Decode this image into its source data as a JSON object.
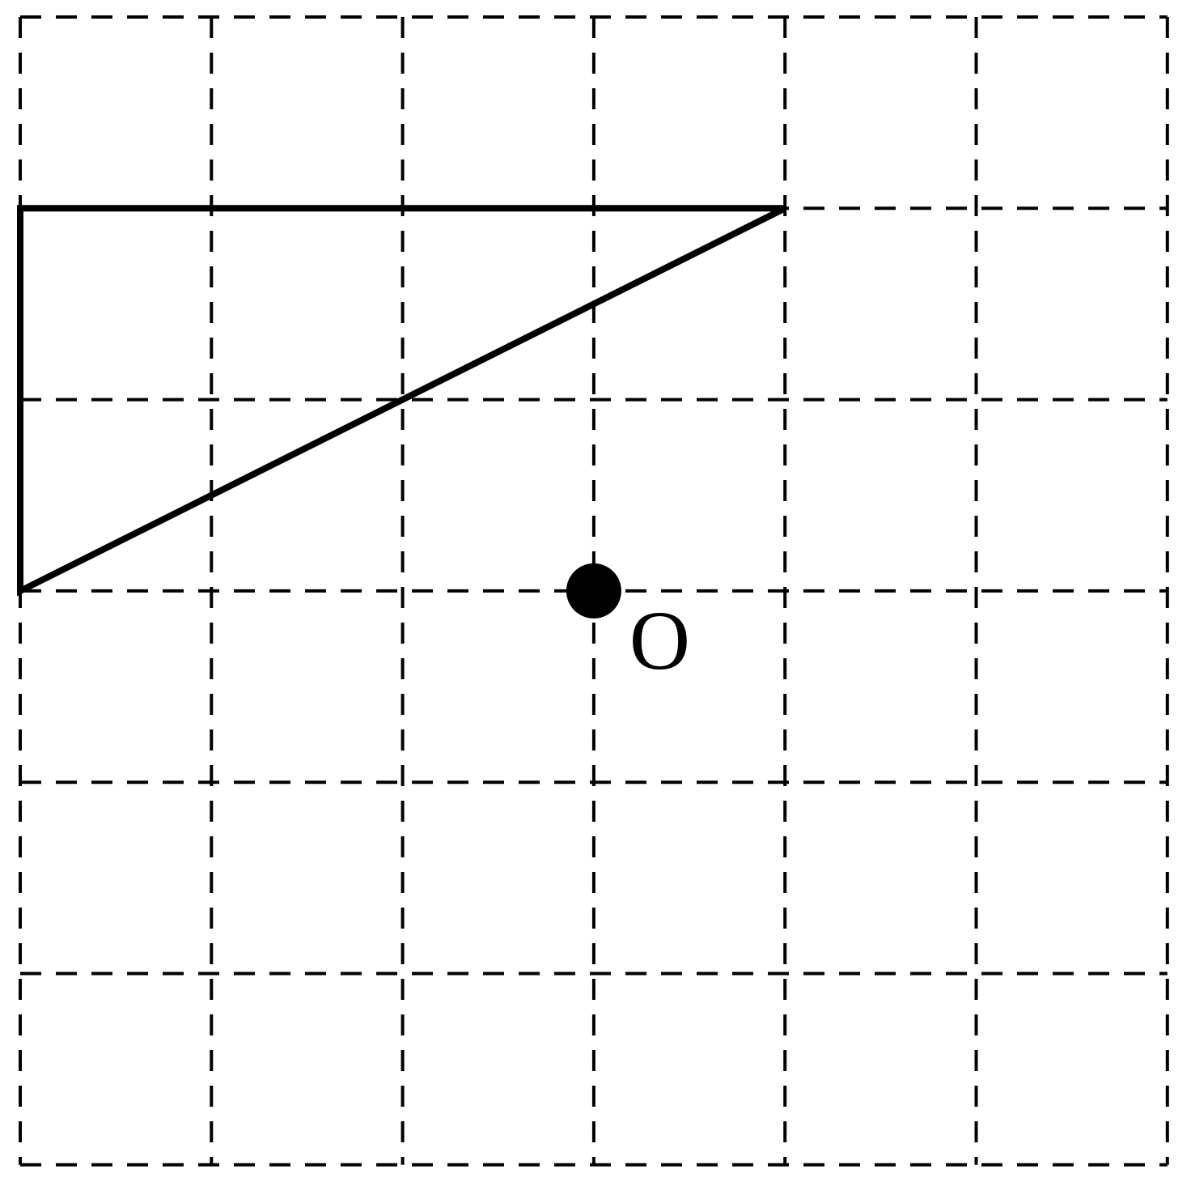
{
  "grid": {
    "columns": 6,
    "rows": 6,
    "style": "dashed",
    "line_color": "#000000"
  },
  "triangle": {
    "vertices": [
      {
        "col": 0,
        "row": 1
      },
      {
        "col": 4,
        "row": 1
      },
      {
        "col": 0,
        "row": 3
      }
    ],
    "stroke_color": "#000000"
  },
  "point_o": {
    "label": "O",
    "col": 3,
    "row": 3,
    "color": "#000000"
  }
}
